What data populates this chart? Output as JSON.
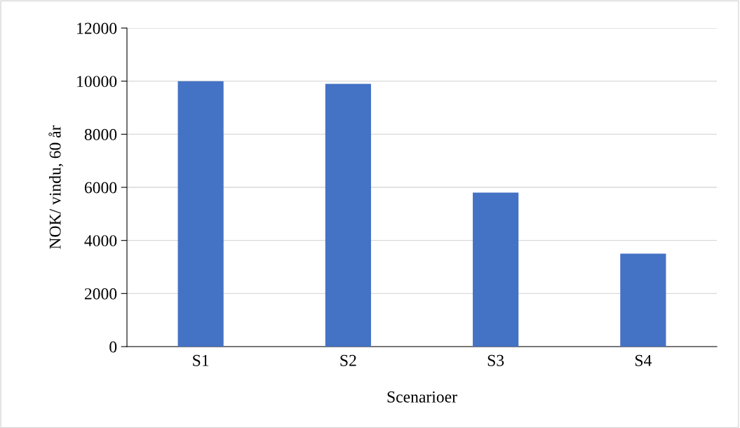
{
  "chart_data": {
    "type": "bar",
    "xlabel": "Scenarioer",
    "ylabel": "NOK/ vindu, 60 år",
    "categories": [
      "S1",
      "S2",
      "S3",
      "S4"
    ],
    "values": [
      10000,
      9900,
      5800,
      3500
    ],
    "color": "#4472c4",
    "ylim": [
      0,
      12000
    ],
    "yticks": [
      0,
      2000,
      4000,
      6000,
      8000,
      10000,
      12000
    ],
    "grid": "y"
  }
}
